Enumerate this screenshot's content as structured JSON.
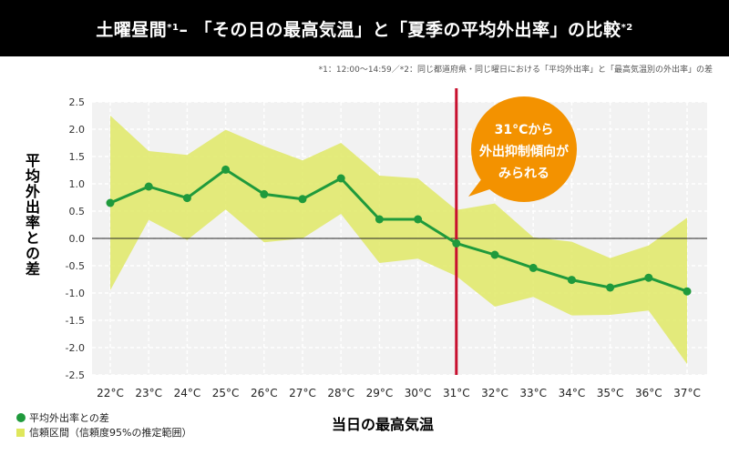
{
  "title": {
    "part1": "土曜昼間",
    "sup1": "*1",
    "part2": " – 「その日の最高気温」と「夏季の平均外出率」の比較",
    "sup2": "*2"
  },
  "footnote": "*1：12:00〜14:59／*2：同じ都道府県・同じ曜日における「平均外出率」と「最高気温別の外出率」の差",
  "annotation": {
    "line1": "31°Cから",
    "line2": "外出抑制傾向が",
    "line3": "みられる"
  },
  "legend": {
    "series_label": "平均外出率との差",
    "band_label": "信頼区間（信頼度95%の推定範囲）"
  },
  "colors": {
    "line": "#1f9a3c",
    "band": "#dfe75c",
    "marker_line": "#c8102e",
    "callout": "#f39200"
  },
  "chart_data": {
    "type": "line",
    "title": "土曜昼間 – 「その日の最高気温」と「夏季の平均外出率」の比較",
    "xlabel": "当日の最高気温",
    "ylabel": "平均外出率との差",
    "categories": [
      "22°C",
      "23°C",
      "24°C",
      "25°C",
      "26°C",
      "27°C",
      "28°C",
      "29°C",
      "30°C",
      "31°C",
      "32°C",
      "33°C",
      "34°C",
      "35°C",
      "36°C",
      "37°C"
    ],
    "ylim": [
      -2.5,
      2.5
    ],
    "yticks": [
      "2.5",
      "2.0",
      "1.5",
      "1.0",
      "0.5",
      "0.0",
      "-0.5",
      "-1.0",
      "-1.5",
      "-2.0",
      "-2.5"
    ],
    "ytick_values": [
      2.5,
      2.0,
      1.5,
      1.0,
      0.5,
      0.0,
      -0.5,
      -1.0,
      -1.5,
      -2.0,
      -2.5
    ],
    "grid": true,
    "series": [
      {
        "name": "平均外出率との差",
        "values": [
          0.65,
          0.95,
          0.74,
          1.26,
          0.81,
          0.72,
          1.1,
          0.35,
          0.35,
          -0.09,
          -0.3,
          -0.54,
          -0.76,
          -0.9,
          -0.72,
          -0.97
        ]
      }
    ],
    "confidence_band": {
      "name": "信頼区間（信頼度95%の推定範囲）",
      "upper": [
        2.25,
        1.6,
        1.53,
        1.99,
        1.69,
        1.43,
        1.75,
        1.15,
        1.1,
        0.52,
        0.64,
        0.02,
        -0.06,
        -0.36,
        -0.13,
        0.38
      ],
      "lower": [
        -0.95,
        0.34,
        -0.03,
        0.53,
        -0.07,
        0.0,
        0.45,
        -0.45,
        -0.37,
        -0.69,
        -1.25,
        -1.07,
        -1.41,
        -1.4,
        -1.32,
        -2.3
      ]
    },
    "marker_x": "31°C",
    "legend_position": "bottom-left"
  }
}
